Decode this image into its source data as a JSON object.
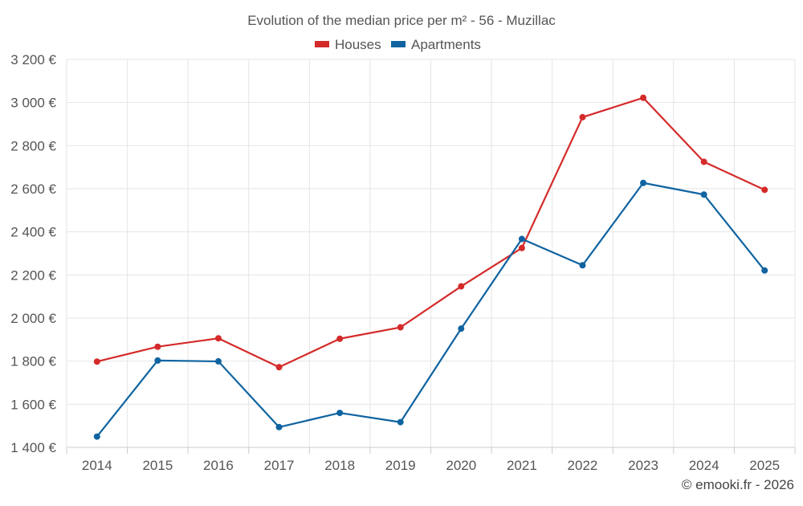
{
  "chart_data": {
    "type": "line",
    "title": "Evolution of the median price per m² - 56 - Muzillac",
    "categories": [
      "2014",
      "2015",
      "2016",
      "2017",
      "2018",
      "2019",
      "2020",
      "2021",
      "2022",
      "2023",
      "2024",
      "2025"
    ],
    "series": [
      {
        "name": "Houses",
        "color": "#d42a2a",
        "values": [
          1798,
          1867,
          1906,
          1772,
          1904,
          1957,
          2147,
          2325,
          2932,
          3022,
          2725,
          2595
        ]
      },
      {
        "name": "Apartments",
        "color": "#0f63a0",
        "values": [
          1450,
          1803,
          1799,
          1494,
          1560,
          1517,
          1951,
          2367,
          2245,
          2627,
          2573,
          2221
        ]
      }
    ],
    "ylim": [
      1400,
      3200
    ],
    "yticks": [
      1400,
      1600,
      1800,
      2000,
      2200,
      2400,
      2600,
      2800,
      3000,
      3200
    ],
    "ytick_labels": [
      "1 400 €",
      "1 600 €",
      "1 800 €",
      "2 000 €",
      "2 200 €",
      "2 400 €",
      "2 600 €",
      "2 800 €",
      "3 000 €",
      "3 200 €"
    ],
    "xlabel": "",
    "ylabel": "",
    "grid": true,
    "legend_position": "top-center"
  },
  "credit": "© emooki.fr - 2026"
}
